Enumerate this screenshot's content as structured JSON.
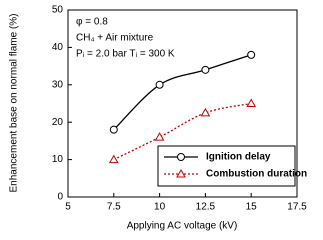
{
  "chart_data": {
    "type": "line",
    "x_label": "Applying AC voltage (kV)",
    "y_label": "Enhancement base on normal flame (%)",
    "annotations": [
      "φ = 0.8",
      "CH₄ + Air mixture",
      "Pᵢ = 2.0 bar  Tᵢ = 300 K"
    ],
    "x": [
      7.5,
      10,
      12.5,
      15
    ],
    "series": [
      {
        "name": "Ignition delay",
        "color": "#000000",
        "marker": "circle",
        "dash": "solid",
        "values": [
          18,
          30,
          34,
          38
        ]
      },
      {
        "name": "Combustion duration",
        "color": "#c00000",
        "marker": "triangle",
        "dash": "dotted",
        "values": [
          10,
          16,
          22.5,
          25
        ]
      }
    ],
    "xlim": [
      5,
      17.5
    ],
    "xticks": [
      5,
      7.5,
      10,
      12.5,
      15,
      17.5
    ],
    "ylim": [
      0,
      50
    ],
    "yticks": [
      0,
      10,
      20,
      30,
      40,
      50
    ],
    "grid": false,
    "legend": "lower right"
  }
}
